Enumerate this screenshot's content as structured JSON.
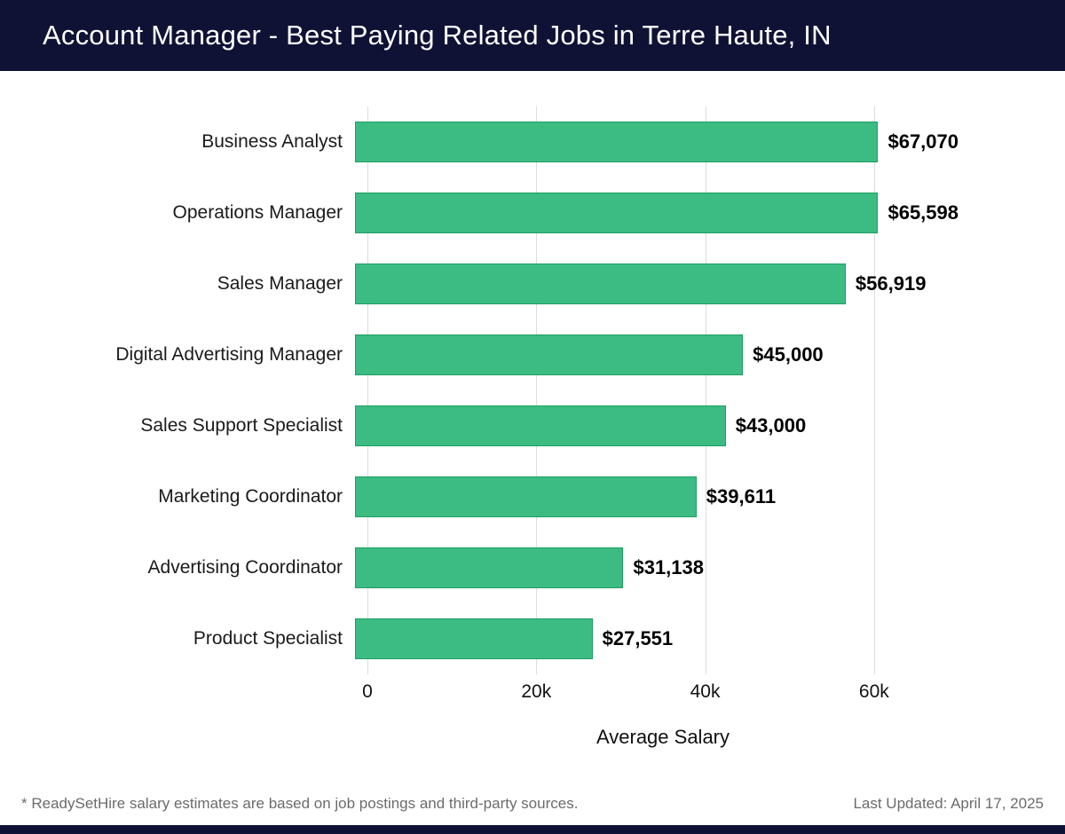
{
  "header": {
    "title": "Account Manager - Best Paying Related Jobs in Terre Haute, IN"
  },
  "chart_data": {
    "type": "bar",
    "orientation": "horizontal",
    "title": "Account Manager - Best Paying Related Jobs in Terre Haute, IN",
    "categories": [
      "Business Analyst",
      "Operations Manager",
      "Sales Manager",
      "Digital Advertising Manager",
      "Sales Support Specialist",
      "Marketing Coordinator",
      "Advertising Coordinator",
      "Product Specialist"
    ],
    "values": [
      67070,
      65598,
      56919,
      45000,
      43000,
      39611,
      31138,
      27551
    ],
    "value_labels": [
      "$67,070",
      "$65,598",
      "$56,919",
      "$45,000",
      "$43,000",
      "$39,611",
      "$31,138",
      "$27,551"
    ],
    "xlabel": "Average Salary",
    "ylabel": "",
    "xlim": [
      0,
      70000
    ],
    "xticks": [
      {
        "value": 0,
        "label": "0"
      },
      {
        "value": 20000,
        "label": "20k"
      },
      {
        "value": 40000,
        "label": "40k"
      },
      {
        "value": 60000,
        "label": "60k"
      }
    ],
    "grid": "vertical",
    "legend": "none"
  },
  "colors": {
    "header_bg": "#101235",
    "bar_fill": "#3cbc82",
    "bar_border": "#1d9e62",
    "gridline": "#dcdcdc"
  },
  "footer": {
    "note": "* ReadySetHire salary estimates are based on job postings and third-party sources.",
    "last_updated": "Last Updated: April 17, 2025"
  }
}
